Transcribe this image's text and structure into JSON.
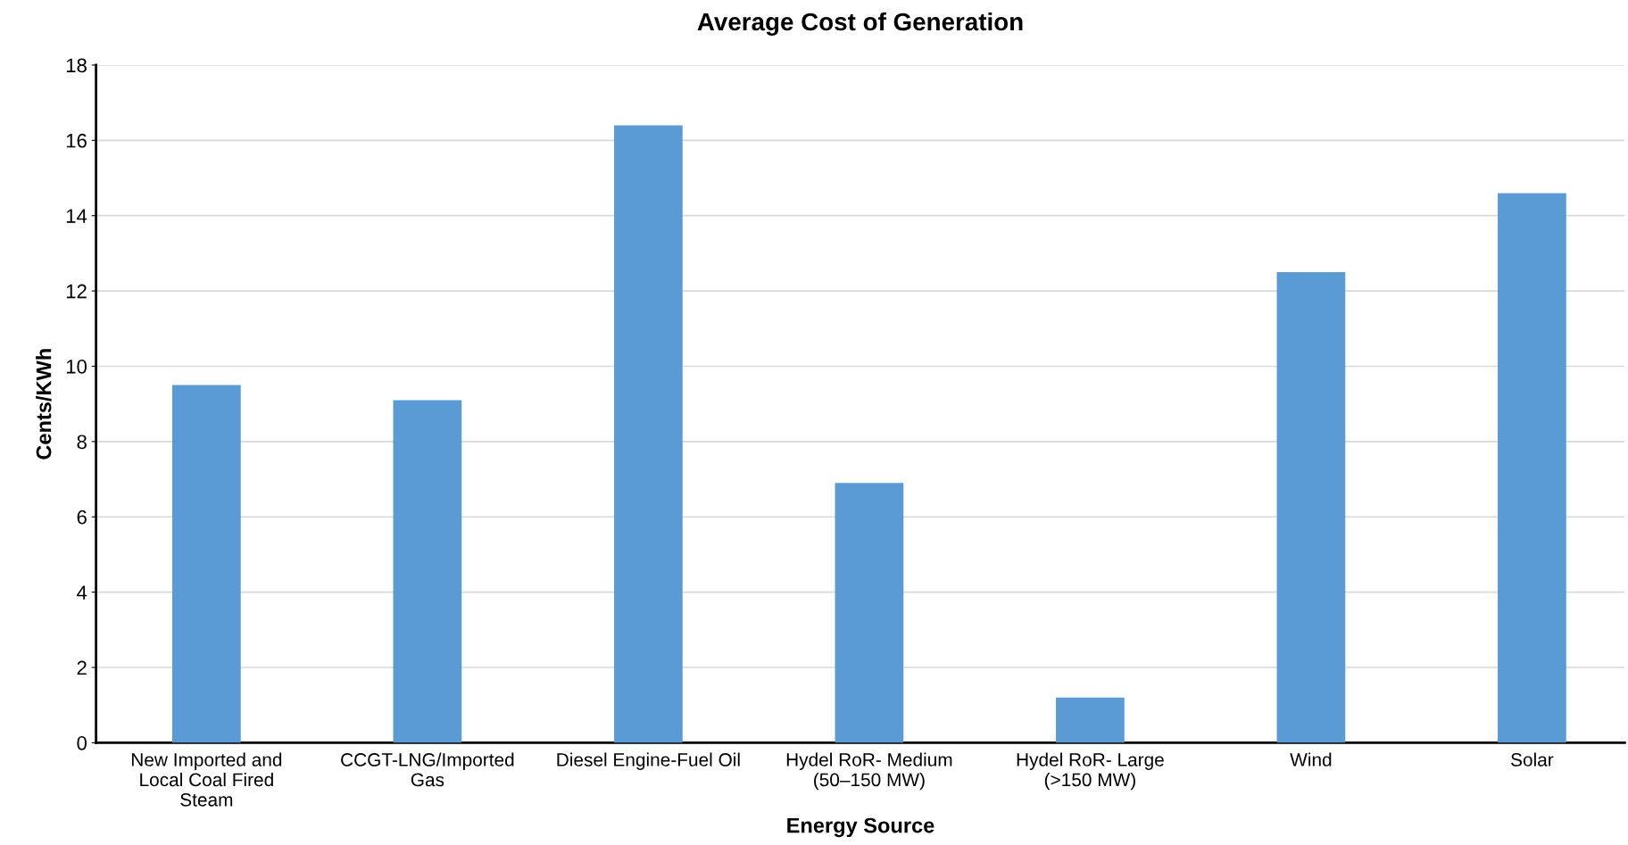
{
  "chart_data": {
    "type": "bar",
    "title": "Average Cost of Generation",
    "xlabel": "Energy Source",
    "ylabel": "Cents/KWh",
    "categories": [
      "New Imported and\nLocal Coal Fired\nSteam",
      "CCGT-LNG/Imported\nGas",
      "Diesel Engine-Fuel Oil",
      "Hydel RoR- Medium\n(50–150 MW)",
      "Hydel RoR- Large\n(>150 MW)",
      "Wind",
      "Solar"
    ],
    "values": [
      9.5,
      9.1,
      16.4,
      6.9,
      1.2,
      12.5,
      14.6
    ],
    "color": "#5b9bd5",
    "ylim": [
      0,
      18
    ],
    "yticks": [
      0,
      2,
      4,
      6,
      8,
      10,
      12,
      14,
      16,
      18
    ],
    "grid": "y",
    "legend": false
  }
}
